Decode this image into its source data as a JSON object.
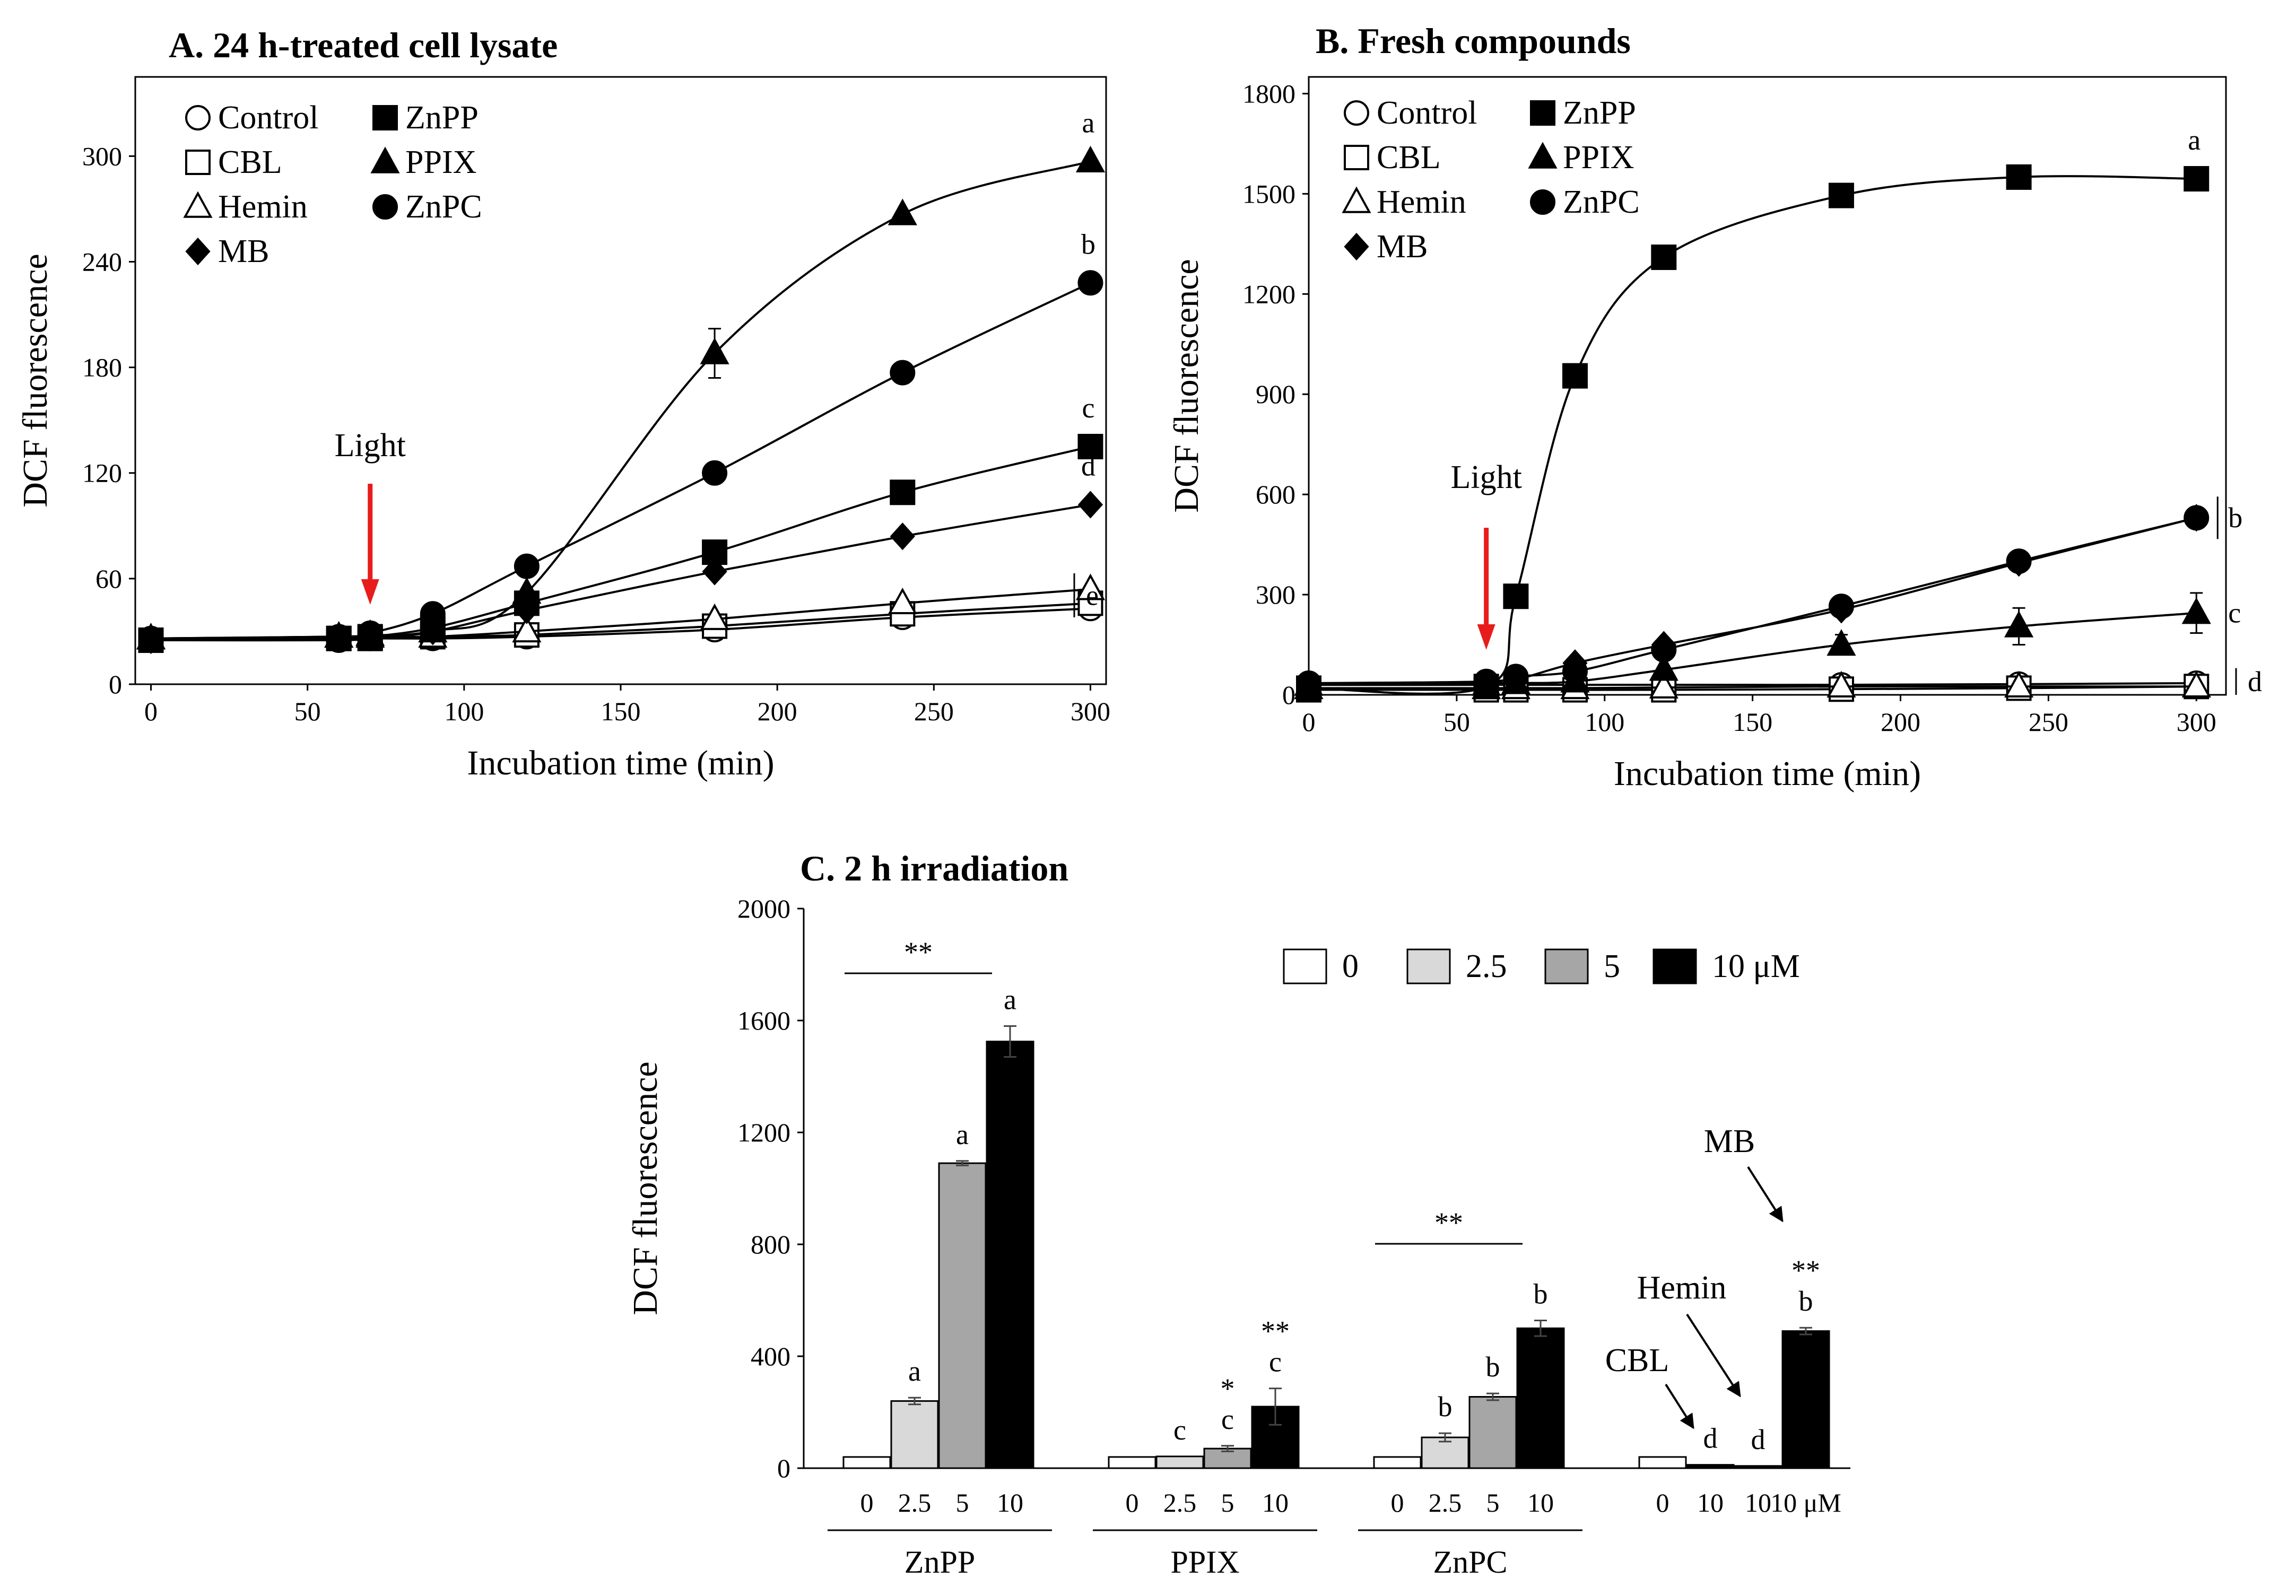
{
  "colors": {
    "axis": "#000000",
    "light_arrow": "#e81c1c",
    "bar_0": "#ffffff",
    "bar_2_5": "#d9d9d9",
    "bar_5": "#a6a6a6",
    "bar_10": "#000000"
  },
  "chart_data": [
    {
      "panel": "A",
      "type": "line",
      "title": "A. 24 h-treated cell lysate",
      "xlabel": "Incubation time (min)",
      "ylabel": "DCF fluorescence",
      "xlim": [
        -5,
        305
      ],
      "ylim": [
        0,
        345
      ],
      "xticks": [
        0,
        50,
        100,
        150,
        200,
        250,
        300
      ],
      "yticks": [
        0,
        60,
        120,
        180,
        240,
        300
      ],
      "light": {
        "label": "Light",
        "x": 70
      },
      "x": [
        0,
        60,
        70,
        90,
        120,
        180,
        240,
        300
      ],
      "series": [
        {
          "name": "Control",
          "marker": "circle",
          "filled": false,
          "values": [
            25,
            25,
            26,
            26,
            27,
            31,
            38,
            43
          ]
        },
        {
          "name": "CBL",
          "marker": "square",
          "filled": false,
          "values": [
            25,
            26,
            26,
            27,
            28,
            33,
            40,
            46
          ]
        },
        {
          "name": "Hemin",
          "marker": "triangle",
          "filled": false,
          "values": [
            26,
            27,
            27,
            27,
            30,
            37,
            46,
            54
          ]
        },
        {
          "name": "MB",
          "marker": "diamond",
          "filled": true,
          "values": [
            25,
            26,
            27,
            30,
            42,
            64,
            84,
            102
          ]
        },
        {
          "name": "ZnPP",
          "marker": "square",
          "filled": true,
          "values": [
            25,
            26,
            27,
            32,
            46,
            75,
            109,
            135
          ]
        },
        {
          "name": "PPIX",
          "marker": "triangle",
          "filled": true,
          "err": [
            0,
            0,
            0,
            0,
            0,
            14,
            0,
            0
          ],
          "values": [
            26,
            27,
            28,
            30,
            52,
            188,
            267,
            297
          ]
        },
        {
          "name": "ZnPC",
          "marker": "circle",
          "filled": true,
          "values": [
            26,
            27,
            29,
            40,
            67,
            120,
            177,
            228
          ]
        }
      ],
      "legend": {
        "col1": [
          "Control",
          "CBL",
          "Hemin",
          "MB"
        ],
        "col2": [
          "ZnPP",
          "PPIX",
          "ZnPC"
        ]
      },
      "sig_labels": [
        {
          "text": "a",
          "series": "PPIX"
        },
        {
          "text": "b",
          "series": "ZnPC"
        },
        {
          "text": "c",
          "series": "ZnPP"
        },
        {
          "text": "d",
          "series": "MB"
        },
        {
          "text": "e",
          "series": "group",
          "bracket": true
        }
      ]
    },
    {
      "panel": "B",
      "type": "line",
      "title": "B. Fresh compounds",
      "xlabel": "Incubation time (min)",
      "ylabel": "DCF fluorescence",
      "xlim": [
        0,
        310
      ],
      "ylim": [
        0,
        1850
      ],
      "xticks": [
        0,
        50,
        100,
        150,
        200,
        250,
        300
      ],
      "yticks": [
        0,
        300,
        600,
        900,
        1200,
        1500,
        1800
      ],
      "light": {
        "label": "Light",
        "x": 60
      },
      "x": [
        0,
        60,
        70,
        90,
        120,
        180,
        240,
        300
      ],
      "series": [
        {
          "name": "Control",
          "marker": "circle",
          "filled": false,
          "values": [
            30,
            30,
            30,
            30,
            30,
            30,
            32,
            35
          ]
        },
        {
          "name": "CBL",
          "marker": "square",
          "filled": false,
          "values": [
            15,
            15,
            15,
            15,
            15,
            17,
            20,
            25
          ]
        },
        {
          "name": "Hemin",
          "marker": "triangle",
          "filled": false,
          "values": [
            20,
            20,
            20,
            20,
            22,
            25,
            25,
            25
          ]
        },
        {
          "name": "MB",
          "marker": "diamond",
          "filled": true,
          "values": [
            30,
            35,
            45,
            95,
            150,
            255,
            395,
            530
          ]
        },
        {
          "name": "ZnPP",
          "marker": "square",
          "filled": true,
          "values": [
            20,
            25,
            295,
            955,
            1310,
            1495,
            1550,
            1545
          ]
        },
        {
          "name": "PPIX",
          "marker": "triangle",
          "filled": true,
          "err": [
            0,
            0,
            0,
            0,
            0,
            30,
            55,
            60
          ],
          "values": [
            30,
            30,
            35,
            40,
            75,
            150,
            205,
            245
          ]
        },
        {
          "name": "ZnPC",
          "marker": "circle",
          "filled": true,
          "values": [
            35,
            40,
            55,
            70,
            135,
            265,
            400,
            530
          ]
        }
      ],
      "legend": {
        "col1": [
          "Control",
          "CBL",
          "Hemin",
          "MB"
        ],
        "col2": [
          "ZnPP",
          "PPIX",
          "ZnPC"
        ]
      },
      "sig_labels": [
        {
          "text": "a",
          "series": "ZnPP"
        },
        {
          "text": "b",
          "series": "ZnPC",
          "bracket": true
        },
        {
          "text": "c",
          "series": "PPIX"
        },
        {
          "text": "d",
          "series": "group",
          "bracket": true
        }
      ]
    },
    {
      "panel": "C",
      "type": "bar",
      "title": "C. 2 h irradiation",
      "ylabel": "DCF fluorescence",
      "ylim": [
        0,
        2000
      ],
      "yticks": [
        0,
        400,
        800,
        1200,
        1600,
        2000
      ],
      "legend": [
        "0",
        "2.5",
        "5",
        "10 μM"
      ],
      "groups": [
        {
          "name": "ZnPP",
          "bars": [
            {
              "conc": "0",
              "value": 40,
              "err": 0,
              "label": ""
            },
            {
              "conc": "2.5",
              "value": 240,
              "err": 12,
              "label": "a"
            },
            {
              "conc": "5",
              "value": 1090,
              "err": 8,
              "label": "a"
            },
            {
              "conc": "10",
              "value": 1525,
              "err": 55,
              "label": "a"
            }
          ],
          "sig_line": "**"
        },
        {
          "name": "PPIX",
          "bars": [
            {
              "conc": "0",
              "value": 40,
              "err": 0,
              "label": ""
            },
            {
              "conc": "2.5",
              "value": 42,
              "err": 0,
              "label": "c"
            },
            {
              "conc": "5",
              "value": 70,
              "err": 10,
              "label": "c",
              "star": "*"
            },
            {
              "conc": "10",
              "value": 220,
              "err": 65,
              "label": "c",
              "star": "**"
            }
          ]
        },
        {
          "name": "ZnPC",
          "bars": [
            {
              "conc": "0",
              "value": 40,
              "err": 0,
              "label": ""
            },
            {
              "conc": "2.5",
              "value": 110,
              "err": 15,
              "label": "b"
            },
            {
              "conc": "5",
              "value": 255,
              "err": 12,
              "label": "b"
            },
            {
              "conc": "10",
              "value": 500,
              "err": 28,
              "label": "b"
            }
          ],
          "sig_line": "**"
        },
        {
          "name": "",
          "bars": [
            {
              "conc": "0",
              "value": 40,
              "err": 0,
              "label": ""
            },
            {
              "conc": "10",
              "value": 12,
              "err": 0,
              "label": "d",
              "compound": "CBL"
            },
            {
              "conc": "10",
              "value": 8,
              "err": 0,
              "label": "d",
              "compound": "Hemin"
            },
            {
              "conc": "10 μM",
              "value": 490,
              "err": 12,
              "label": "b",
              "compound": "MB",
              "star": "**"
            }
          ]
        }
      ],
      "annotations": [
        "CBL",
        "Hemin",
        "MB"
      ]
    }
  ]
}
